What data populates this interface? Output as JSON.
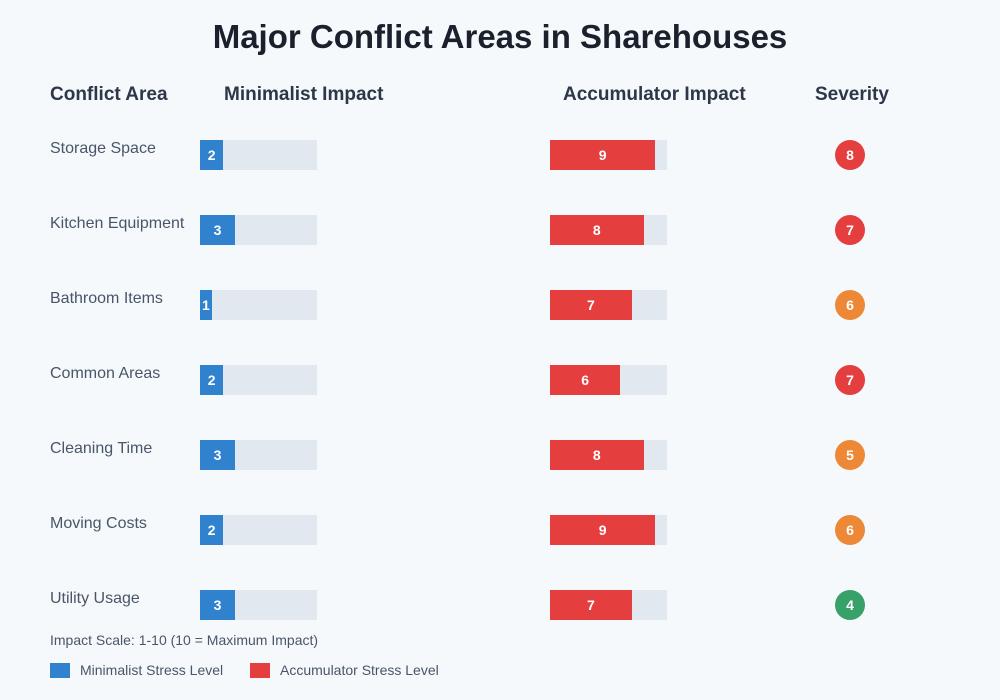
{
  "chart_data": {
    "type": "bar",
    "title": "Major Conflict Areas in Sharehouses",
    "columns": [
      "Conflict Area",
      "Minimalist Impact",
      "Accumulator Impact",
      "Severity"
    ],
    "categories": [
      "Storage Space",
      "Kitchen Equipment",
      "Bathroom Items",
      "Common Areas",
      "Cleaning Time",
      "Moving Costs",
      "Utility Usage"
    ],
    "series": [
      {
        "name": "Minimalist Stress Level",
        "color": "#3182ce",
        "values": [
          2,
          3,
          1,
          2,
          3,
          2,
          3
        ]
      },
      {
        "name": "Accumulator Stress Level",
        "color": "#e53e3e",
        "values": [
          9,
          8,
          7,
          6,
          8,
          9,
          7
        ]
      }
    ],
    "severity": [
      8,
      7,
      6,
      7,
      5,
      6,
      4
    ],
    "severity_colors": {
      "high": "#e53e3e",
      "medium": "#ed8936",
      "low": "#38a169"
    },
    "xlim": [
      0,
      10
    ],
    "footnote": "Impact Scale: 1-10 (10 = Maximum Impact)",
    "legend_position": "bottom-left"
  }
}
